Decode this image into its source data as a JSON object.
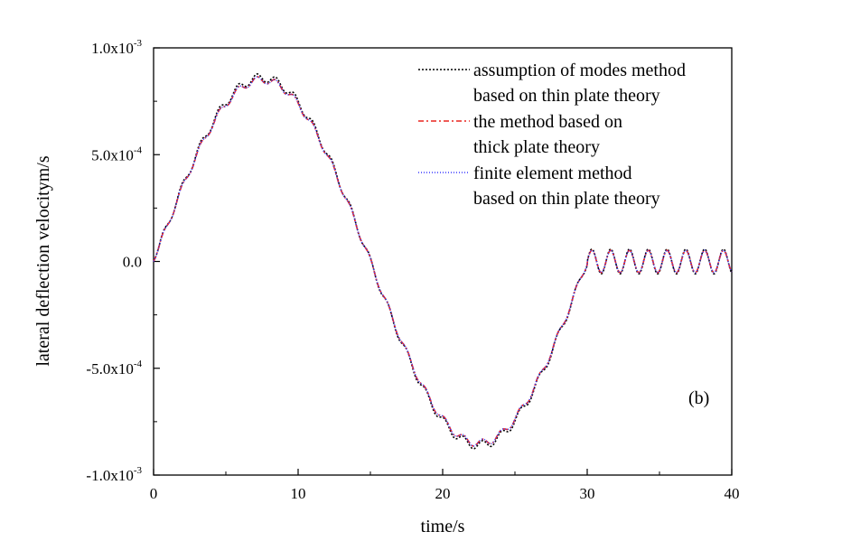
{
  "chart_data": {
    "type": "line",
    "xlabel": "time/s",
    "ylabel": "lateral deflection velocitym/s",
    "xlim": [
      0,
      40
    ],
    "ylim": [
      -0.001,
      0.001
    ],
    "x_ticks": [
      0,
      10,
      20,
      30,
      40
    ],
    "x_tick_labels": [
      "0",
      "10",
      "20",
      "30",
      "40"
    ],
    "y_ticks": [
      {
        "value": 0.001,
        "mantissa": "1.0x10",
        "exp": "-3"
      },
      {
        "value": 0.0005,
        "mantissa": "5.0x10",
        "exp": "-4"
      },
      {
        "value": 0.0,
        "mantissa": "0.0",
        "exp": ""
      },
      {
        "value": -0.0005,
        "mantissa": "-5.0x10",
        "exp": "-4"
      },
      {
        "value": -0.001,
        "mantissa": "-1.0x10",
        "exp": "-3"
      }
    ],
    "annotation": "(b)",
    "grid": false,
    "legend_position": "top-right",
    "series": [
      {
        "name": "assumption of modes method",
        "name_line2": "based on thin plate theory",
        "color": "#000000",
        "dash": "2,2",
        "base_amplitude": 0.00086,
        "base_period": 30,
        "ripple_amplitude": 2e-05,
        "ripple_period": 1.3,
        "free_amplitude": 5.8e-05
      },
      {
        "name": "the method based on",
        "name_line2": "thick plate theory",
        "color": "#e8251f",
        "dash": "6,3,2,3",
        "base_amplitude": 0.00085,
        "base_period": 30,
        "ripple_amplitude": 1.7e-05,
        "ripple_period": 1.3,
        "free_amplitude": 5.2e-05
      },
      {
        "name": "finite element method",
        "name_line2": "based on thin plate theory",
        "color": "#3a3aff",
        "dash": "1,2",
        "base_amplitude": 0.00085,
        "base_period": 30,
        "ripple_amplitude": 1.7e-05,
        "ripple_period": 1.3,
        "free_amplitude": 5.2e-05
      }
    ]
  }
}
